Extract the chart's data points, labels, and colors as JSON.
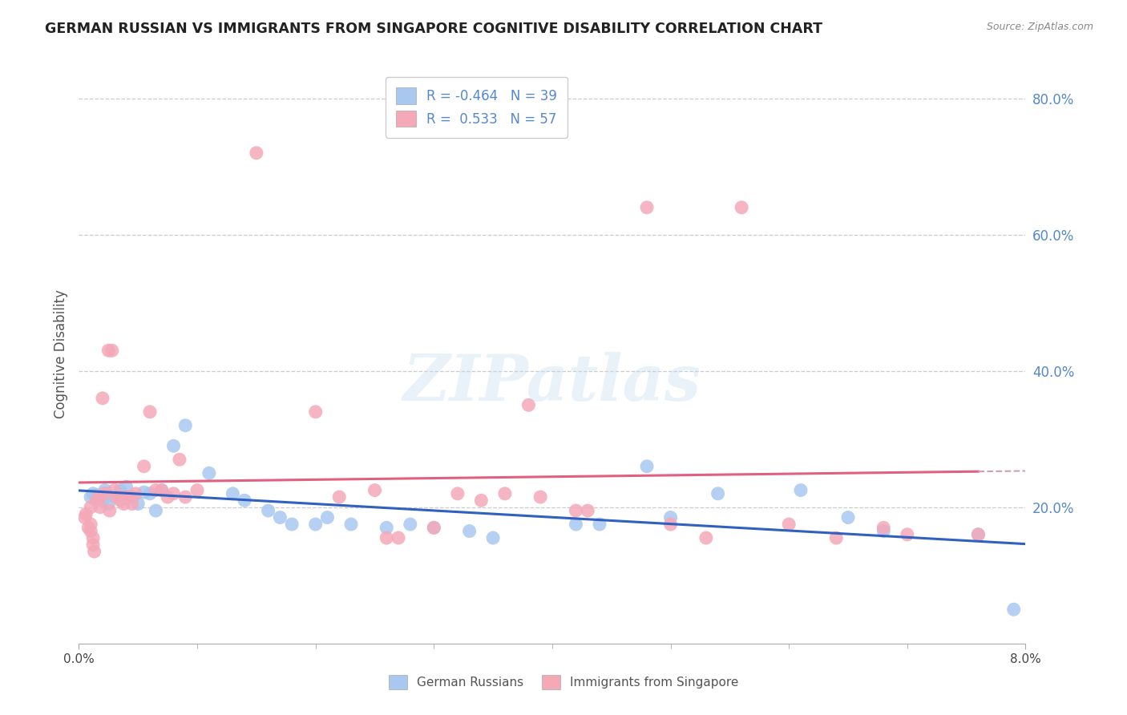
{
  "title": "GERMAN RUSSIAN VS IMMIGRANTS FROM SINGAPORE COGNITIVE DISABILITY CORRELATION CHART",
  "source": "Source: ZipAtlas.com",
  "ylabel": "Cognitive Disability",
  "legend_blue_label": "German Russians",
  "legend_pink_label": "Immigrants from Singapore",
  "blue_color": "#A8C8F0",
  "pink_color": "#F4A8B8",
  "blue_line_color": "#3060C0",
  "pink_line_color": "#E06080",
  "dashed_line_color": "#D0A0B0",
  "blue_scatter": [
    [
      0.001,
      0.215
    ],
    [
      0.0012,
      0.22
    ],
    [
      0.0015,
      0.218
    ],
    [
      0.002,
      0.21
    ],
    [
      0.0022,
      0.225
    ],
    [
      0.0025,
      0.205
    ],
    [
      0.003,
      0.215
    ],
    [
      0.0035,
      0.225
    ],
    [
      0.004,
      0.23
    ],
    [
      0.0045,
      0.215
    ],
    [
      0.005,
      0.205
    ],
    [
      0.0055,
      0.222
    ],
    [
      0.006,
      0.22
    ],
    [
      0.0065,
      0.195
    ],
    [
      0.007,
      0.225
    ],
    [
      0.008,
      0.29
    ],
    [
      0.009,
      0.32
    ],
    [
      0.011,
      0.25
    ],
    [
      0.013,
      0.22
    ],
    [
      0.014,
      0.21
    ],
    [
      0.016,
      0.195
    ],
    [
      0.017,
      0.185
    ],
    [
      0.018,
      0.175
    ],
    [
      0.02,
      0.175
    ],
    [
      0.021,
      0.185
    ],
    [
      0.023,
      0.175
    ],
    [
      0.026,
      0.17
    ],
    [
      0.028,
      0.175
    ],
    [
      0.03,
      0.17
    ],
    [
      0.033,
      0.165
    ],
    [
      0.035,
      0.155
    ],
    [
      0.042,
      0.175
    ],
    [
      0.044,
      0.175
    ],
    [
      0.048,
      0.26
    ],
    [
      0.05,
      0.185
    ],
    [
      0.054,
      0.22
    ],
    [
      0.061,
      0.225
    ],
    [
      0.065,
      0.185
    ],
    [
      0.068,
      0.165
    ],
    [
      0.076,
      0.16
    ],
    [
      0.079,
      0.05
    ]
  ],
  "pink_scatter": [
    [
      0.0005,
      0.185
    ],
    [
      0.0006,
      0.19
    ],
    [
      0.0008,
      0.17
    ],
    [
      0.001,
      0.2
    ],
    [
      0.001,
      0.175
    ],
    [
      0.001,
      0.165
    ],
    [
      0.0012,
      0.155
    ],
    [
      0.0012,
      0.145
    ],
    [
      0.0013,
      0.135
    ],
    [
      0.0015,
      0.21
    ],
    [
      0.0017,
      0.215
    ],
    [
      0.0018,
      0.2
    ],
    [
      0.002,
      0.36
    ],
    [
      0.0022,
      0.22
    ],
    [
      0.0025,
      0.43
    ],
    [
      0.0026,
      0.195
    ],
    [
      0.0028,
      0.43
    ],
    [
      0.003,
      0.225
    ],
    [
      0.0032,
      0.215
    ],
    [
      0.0035,
      0.21
    ],
    [
      0.0038,
      0.205
    ],
    [
      0.004,
      0.215
    ],
    [
      0.0042,
      0.215
    ],
    [
      0.0045,
      0.205
    ],
    [
      0.0048,
      0.22
    ],
    [
      0.0055,
      0.26
    ],
    [
      0.006,
      0.34
    ],
    [
      0.0065,
      0.225
    ],
    [
      0.007,
      0.225
    ],
    [
      0.0075,
      0.215
    ],
    [
      0.008,
      0.22
    ],
    [
      0.0085,
      0.27
    ],
    [
      0.009,
      0.215
    ],
    [
      0.01,
      0.225
    ],
    [
      0.015,
      0.72
    ],
    [
      0.02,
      0.34
    ],
    [
      0.022,
      0.215
    ],
    [
      0.025,
      0.225
    ],
    [
      0.026,
      0.155
    ],
    [
      0.027,
      0.155
    ],
    [
      0.03,
      0.17
    ],
    [
      0.032,
      0.22
    ],
    [
      0.034,
      0.21
    ],
    [
      0.036,
      0.22
    ],
    [
      0.038,
      0.35
    ],
    [
      0.039,
      0.215
    ],
    [
      0.042,
      0.195
    ],
    [
      0.043,
      0.195
    ],
    [
      0.048,
      0.64
    ],
    [
      0.05,
      0.175
    ],
    [
      0.053,
      0.155
    ],
    [
      0.056,
      0.64
    ],
    [
      0.06,
      0.175
    ],
    [
      0.064,
      0.155
    ],
    [
      0.068,
      0.17
    ],
    [
      0.07,
      0.16
    ],
    [
      0.076,
      0.16
    ]
  ],
  "xmin": 0.0,
  "xmax": 0.08,
  "ymin": 0.0,
  "ymax": 0.85,
  "yticks": [
    0.2,
    0.4,
    0.6,
    0.8
  ],
  "ytick_labels": [
    "20.0%",
    "40.0%",
    "60.0%",
    "80.0%"
  ],
  "watermark_text": "ZIPatlas",
  "bg_color": "#FFFFFF",
  "grid_color": "#CCCCCC",
  "tick_color": "#5588CC"
}
